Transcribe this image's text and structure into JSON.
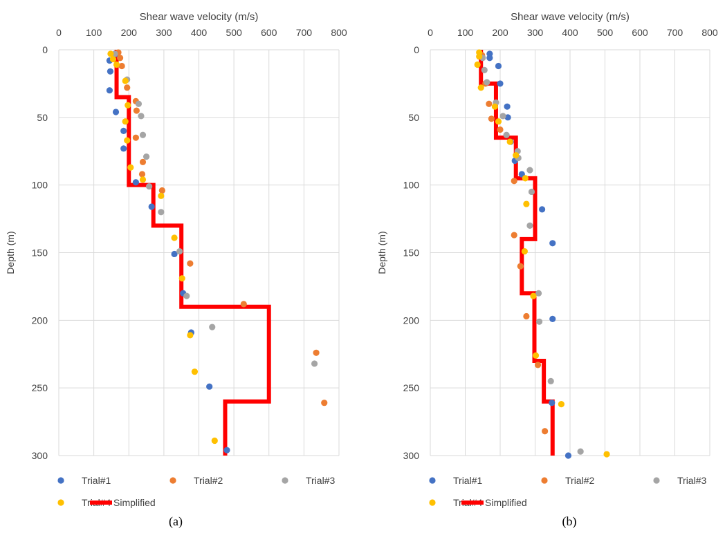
{
  "chart_data": [
    {
      "type": "scatter",
      "panel_label": "(a)",
      "title": "",
      "xlabel": "Shear wave velocity (m/s)",
      "ylabel": "Depth (m)",
      "xlim": [
        0,
        800
      ],
      "ylim": [
        0,
        300
      ],
      "y_inverted": true,
      "x_axis_position": "top",
      "xticks": [
        "0",
        "100",
        "200",
        "300",
        "400",
        "500",
        "600",
        "700",
        "800"
      ],
      "yticks": [
        "0",
        "50",
        "100",
        "150",
        "200",
        "250",
        "300"
      ],
      "grid": true,
      "legend_position": "bottom",
      "series": [
        {
          "name": "Trial#1",
          "color": "#4472c4",
          "kind": "scatter",
          "points": [
            [
              165,
              3
            ],
            [
              145,
              8
            ],
            [
              147,
              16
            ],
            [
              145,
              30
            ],
            [
              163,
              46
            ],
            [
              185,
              60
            ],
            [
              185,
              73
            ],
            [
              220,
              98
            ],
            [
              265,
              116
            ],
            [
              330,
              151
            ],
            [
              355,
              180
            ],
            [
              378,
              209
            ],
            [
              430,
              249
            ],
            [
              480,
              296
            ]
          ]
        },
        {
          "name": "Trial#2",
          "color": "#ed7d31",
          "kind": "scatter",
          "points": [
            [
              170,
              2
            ],
            [
              175,
              6
            ],
            [
              180,
              12
            ],
            [
              195,
              28
            ],
            [
              220,
              38
            ],
            [
              222,
              45
            ],
            [
              220,
              65
            ],
            [
              240,
              83
            ],
            [
              238,
              92
            ],
            [
              295,
              104
            ],
            [
              375,
              158
            ],
            [
              528,
              188
            ],
            [
              735,
              224
            ],
            [
              758,
              261
            ]
          ]
        },
        {
          "name": "Trial#3",
          "color": "#a5a5a5",
          "kind": "scatter",
          "points": [
            [
              160,
              3
            ],
            [
              195,
              22
            ],
            [
              228,
              40
            ],
            [
              235,
              49
            ],
            [
              240,
              63
            ],
            [
              250,
              79
            ],
            [
              258,
              101
            ],
            [
              292,
              120
            ],
            [
              345,
              149
            ],
            [
              365,
              182
            ],
            [
              438,
              205
            ],
            [
              730,
              232
            ]
          ]
        },
        {
          "name": "Trial#4",
          "color": "#ffc000",
          "kind": "scatter",
          "points": [
            [
              148,
              3
            ],
            [
              155,
              7
            ],
            [
              165,
              11
            ],
            [
              190,
              23
            ],
            [
              197,
              41
            ],
            [
              190,
              53
            ],
            [
              195,
              67
            ],
            [
              205,
              87
            ],
            [
              240,
              96
            ],
            [
              292,
              108
            ],
            [
              330,
              139
            ],
            [
              352,
              169
            ],
            [
              375,
              211
            ],
            [
              388,
              238
            ],
            [
              445,
              289
            ]
          ]
        },
        {
          "name": "Simplified",
          "color": "#ff0000",
          "kind": "line",
          "points": [
            [
              165,
              0
            ],
            [
              165,
              35
            ],
            [
              200,
              35
            ],
            [
              200,
              100
            ],
            [
              270,
              100
            ],
            [
              270,
              130
            ],
            [
              350,
              130
            ],
            [
              350,
              190
            ],
            [
              600,
              190
            ],
            [
              600,
              260
            ],
            [
              475,
              260
            ],
            [
              475,
              300
            ]
          ]
        }
      ]
    },
    {
      "type": "scatter",
      "panel_label": "(b)",
      "title": "",
      "xlabel": "Shear wave velocity (m/s)",
      "ylabel": "Depth (m)",
      "xlim": [
        0,
        800
      ],
      "ylim": [
        0,
        300
      ],
      "y_inverted": true,
      "x_axis_position": "top",
      "xticks": [
        "0",
        "100",
        "200",
        "300",
        "400",
        "500",
        "600",
        "700",
        "800"
      ],
      "yticks": [
        "0",
        "50",
        "100",
        "150",
        "200",
        "250",
        "300"
      ],
      "grid": true,
      "legend_position": "bottom",
      "series": [
        {
          "name": "Trial#1",
          "color": "#4472c4",
          "kind": "scatter",
          "points": [
            [
              170,
              3
            ],
            [
              170,
              6
            ],
            [
              195,
              12
            ],
            [
              200,
              25
            ],
            [
              220,
              42
            ],
            [
              222,
              50
            ],
            [
              230,
              68
            ],
            [
              242,
              82
            ],
            [
              262,
              92
            ],
            [
              320,
              118
            ],
            [
              350,
              143
            ],
            [
              350,
              199
            ],
            [
              348,
              261
            ],
            [
              395,
              300
            ]
          ]
        },
        {
          "name": "Trial#2",
          "color": "#ed7d31",
          "kind": "scatter",
          "points": [
            [
              148,
              4
            ],
            [
              158,
              25
            ],
            [
              168,
              40
            ],
            [
              175,
              51
            ],
            [
              200,
              59
            ],
            [
              240,
              97
            ],
            [
              240,
              137
            ],
            [
              258,
              160
            ],
            [
              275,
              197
            ],
            [
              308,
              233
            ],
            [
              328,
              282
            ]
          ]
        },
        {
          "name": "Trial#3",
          "color": "#a5a5a5",
          "kind": "scatter",
          "points": [
            [
              150,
              6
            ],
            [
              155,
              15
            ],
            [
              162,
              24
            ],
            [
              188,
              39
            ],
            [
              208,
              49
            ],
            [
              218,
              63
            ],
            [
              250,
              75
            ],
            [
              252,
              80
            ],
            [
              285,
              89
            ],
            [
              290,
              105
            ],
            [
              285,
              130
            ],
            [
              310,
              180
            ],
            [
              312,
              201
            ],
            [
              345,
              245
            ],
            [
              430,
              297
            ]
          ]
        },
        {
          "name": "Trial#4",
          "color": "#ffc000",
          "kind": "scatter",
          "points": [
            [
              140,
              2
            ],
            [
              140,
              5
            ],
            [
              135,
              11
            ],
            [
              145,
              28
            ],
            [
              185,
              42
            ],
            [
              195,
              53
            ],
            [
              228,
              68
            ],
            [
              245,
              78
            ],
            [
              272,
              95
            ],
            [
              275,
              114
            ],
            [
              270,
              149
            ],
            [
              295,
              182
            ],
            [
              302,
              226
            ],
            [
              375,
              262
            ],
            [
              505,
              299
            ]
          ]
        },
        {
          "name": "Simplified",
          "color": "#ff0000",
          "kind": "line",
          "points": [
            [
              145,
              0
            ],
            [
              145,
              25
            ],
            [
              188,
              25
            ],
            [
              188,
              65
            ],
            [
              245,
              65
            ],
            [
              245,
              95
            ],
            [
              300,
              95
            ],
            [
              300,
              140
            ],
            [
              262,
              140
            ],
            [
              262,
              180
            ],
            [
              298,
              180
            ],
            [
              298,
              230
            ],
            [
              325,
              230
            ],
            [
              325,
              260
            ],
            [
              350,
              260
            ],
            [
              350,
              300
            ]
          ]
        }
      ]
    }
  ]
}
